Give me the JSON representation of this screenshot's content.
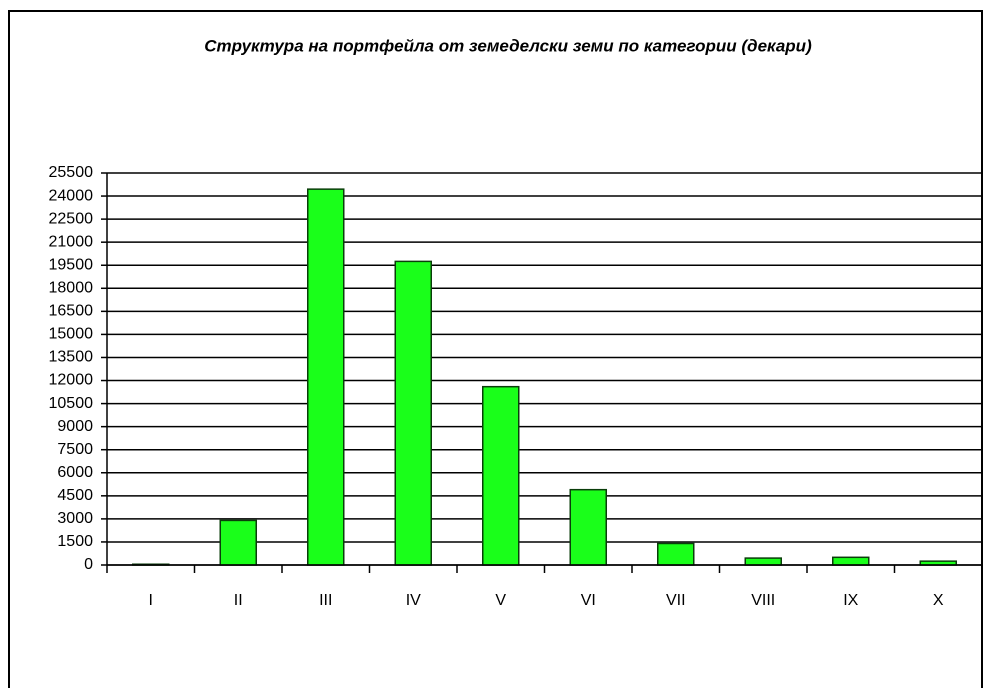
{
  "chart_data": {
    "type": "bar",
    "title": "Структура на портфейла от земеделски земи по категории (декари)",
    "categories": [
      "I",
      "II",
      "III",
      "IV",
      "V",
      "VI",
      "VII",
      "VIII",
      "IX",
      "X"
    ],
    "values": [
      50,
      2900,
      24450,
      19750,
      11600,
      4900,
      1400,
      450,
      500,
      250
    ],
    "color": "#1aff1a",
    "ylim": [
      0,
      25500
    ],
    "yticks": [
      0,
      1500,
      3000,
      4500,
      6000,
      7500,
      9000,
      10500,
      12000,
      13500,
      15000,
      16500,
      18000,
      19500,
      21000,
      22500,
      24000,
      25500
    ],
    "grid": true
  }
}
